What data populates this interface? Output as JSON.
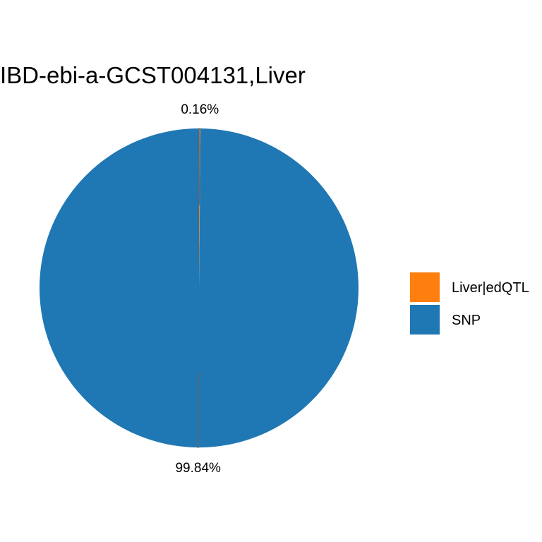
{
  "chart_data": {
    "type": "pie",
    "title": "IBD-ebi-a-GCST004131,Liver",
    "categories": [
      "Liver|edQTL",
      "SNP"
    ],
    "values": [
      0.16,
      99.84
    ],
    "labels": [
      "0.16%",
      "99.84%"
    ],
    "colors": [
      "#ff7f0e",
      "#1f77b4"
    ],
    "unit": "%",
    "legend": {
      "position": "right",
      "entries": [
        {
          "name": "Liver|edQTL",
          "color": "#ff7f0e"
        },
        {
          "name": "SNP",
          "color": "#1f77b4"
        }
      ]
    },
    "grid": false
  }
}
